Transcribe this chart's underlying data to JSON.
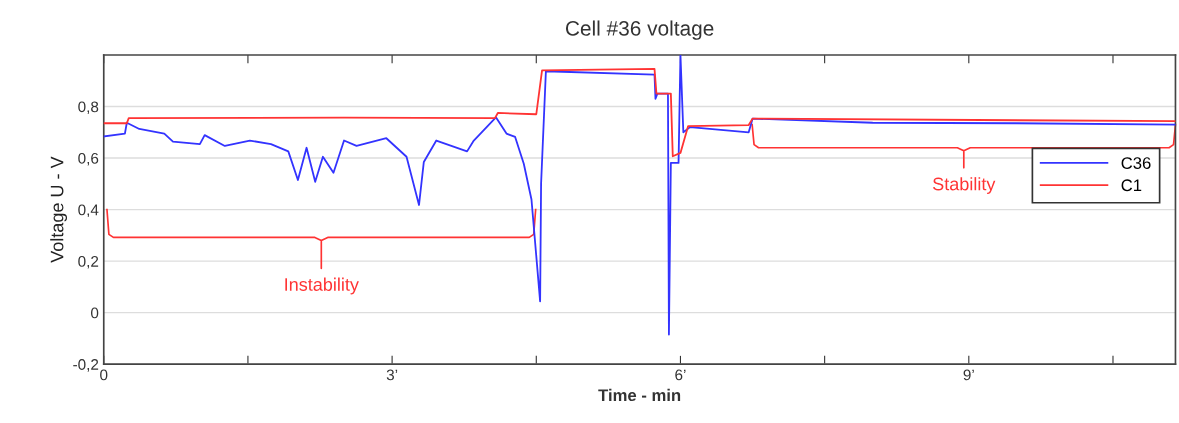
{
  "chart_data": {
    "type": "line",
    "title": "Cell #36 voltage",
    "xlabel": "Time - min",
    "ylabel": "Voltage U - V",
    "xlim": [
      0,
      11.15
    ],
    "ylim": [
      -0.2,
      1.0
    ],
    "xticks": [
      0,
      {
        "value": 1.5,
        "label": null
      },
      {
        "value": 3,
        "label": "3’"
      },
      {
        "value": 4.5,
        "label": null
      },
      {
        "value": 6,
        "label": "6’"
      },
      {
        "value": 7.5,
        "label": null
      },
      {
        "value": 9,
        "label": "9’"
      },
      {
        "value": 10.5,
        "label": null
      }
    ],
    "yticks": [
      {
        "value": -0.2,
        "label": "-0,2"
      },
      0,
      {
        "value": 0.2,
        "label": "0,2"
      },
      {
        "value": 0.4,
        "label": "0,4"
      },
      {
        "value": 0.6,
        "label": "0,6"
      },
      {
        "value": 0.8,
        "label": "0,8"
      }
    ],
    "grid": "y",
    "legend": "right",
    "marker": "none",
    "line_style": "solid",
    "series": [
      {
        "name": "C36",
        "color": "#3333ff",
        "x": [
          0,
          0.22,
          0.24,
          0.37,
          0.63,
          0.72,
          1.0,
          1.05,
          1.26,
          1.52,
          1.74,
          1.92,
          2.02,
          2.11,
          2.2,
          2.28,
          2.39,
          2.5,
          2.63,
          2.94,
          3.15,
          3.28,
          3.33,
          3.46,
          3.78,
          3.85,
          4.08,
          4.19,
          4.28,
          4.37,
          4.45,
          4.54,
          4.55,
          4.6,
          5.73,
          5.74,
          5.76,
          5.87,
          5.88,
          5.9,
          5.98,
          6.0,
          6.03,
          6.1,
          6.71,
          6.75,
          8.0,
          9.5,
          11.15
        ],
        "values": [
          0.684,
          0.695,
          0.737,
          0.713,
          0.695,
          0.664,
          0.654,
          0.689,
          0.647,
          0.668,
          0.654,
          0.626,
          0.515,
          0.64,
          0.508,
          0.605,
          0.543,
          0.668,
          0.647,
          0.677,
          0.605,
          0.418,
          0.585,
          0.668,
          0.626,
          0.668,
          0.758,
          0.695,
          0.682,
          0.578,
          0.439,
          0.044,
          0.5,
          0.937,
          0.924,
          0.83,
          0.85,
          0.85,
          -0.085,
          0.581,
          0.581,
          1.0,
          0.7,
          0.72,
          0.7,
          0.753,
          0.737,
          0.735,
          0.73
        ]
      },
      {
        "name": "C1",
        "color": "#ff3333",
        "x": [
          0,
          0.24,
          0.26,
          2.5,
          4.07,
          4.1,
          4.5,
          4.56,
          5.73,
          5.75,
          5.9,
          5.92,
          6.0,
          6.08,
          6.71,
          6.75,
          11.15
        ],
        "values": [
          0.735,
          0.735,
          0.755,
          0.757,
          0.755,
          0.775,
          0.77,
          0.94,
          0.946,
          0.85,
          0.85,
          0.607,
          0.62,
          0.724,
          0.728,
          0.753,
          0.743
        ]
      }
    ],
    "annotations": [
      "Instability",
      "Stability"
    ]
  }
}
